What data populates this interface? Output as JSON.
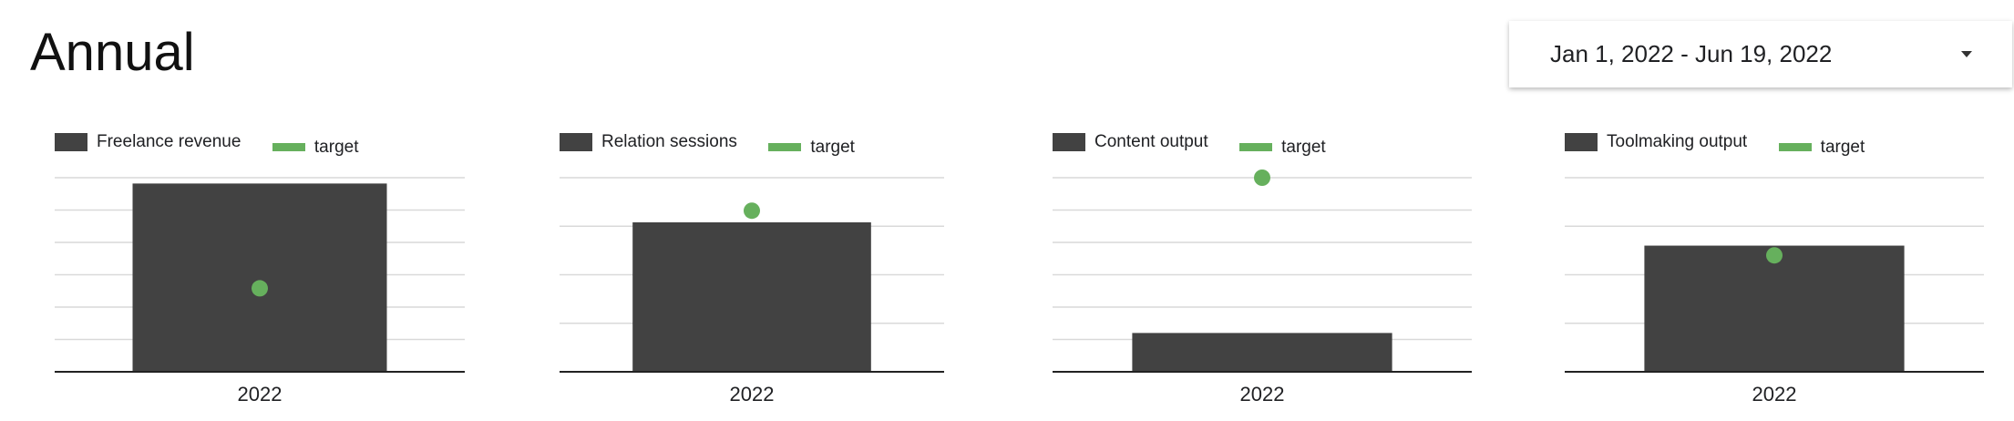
{
  "header": {
    "title": "Annual",
    "date_range": "Jan 1, 2022 - Jun 19, 2022"
  },
  "colors": {
    "bar": "#424242",
    "target": "#66b05d",
    "grid": "#d9d9d9",
    "axis": "#222222"
  },
  "chart_data": [
    {
      "type": "bar",
      "categories": [
        "2022"
      ],
      "series": [
        {
          "name": "Freelance revenue",
          "kind": "bar",
          "values": [
            0.97
          ]
        },
        {
          "name": "target",
          "kind": "point",
          "values": [
            0.43
          ]
        }
      ],
      "ylim": [
        0,
        1
      ],
      "gridlines": 6,
      "grid": true,
      "legend": "top-left"
    },
    {
      "type": "bar",
      "categories": [
        "2022"
      ],
      "series": [
        {
          "name": "Relation sessions",
          "kind": "bar",
          "values": [
            0.77
          ]
        },
        {
          "name": "target",
          "kind": "point",
          "values": [
            0.83
          ]
        }
      ],
      "ylim": [
        0,
        1
      ],
      "gridlines": 4,
      "grid": true,
      "legend": "top-left"
    },
    {
      "type": "bar",
      "categories": [
        "2022"
      ],
      "series": [
        {
          "name": "Content output",
          "kind": "bar",
          "values": [
            0.2
          ]
        },
        {
          "name": "target",
          "kind": "point",
          "values": [
            1.0
          ]
        }
      ],
      "ylim": [
        0,
        1
      ],
      "gridlines": 6,
      "grid": true,
      "legend": "top-left"
    },
    {
      "type": "bar",
      "categories": [
        "2022"
      ],
      "series": [
        {
          "name": "Toolmaking output",
          "kind": "bar",
          "values": [
            0.65
          ]
        },
        {
          "name": "target",
          "kind": "point",
          "values": [
            0.6
          ]
        }
      ],
      "ylim": [
        0,
        1
      ],
      "gridlines": 4,
      "grid": true,
      "legend": "top-left"
    }
  ]
}
